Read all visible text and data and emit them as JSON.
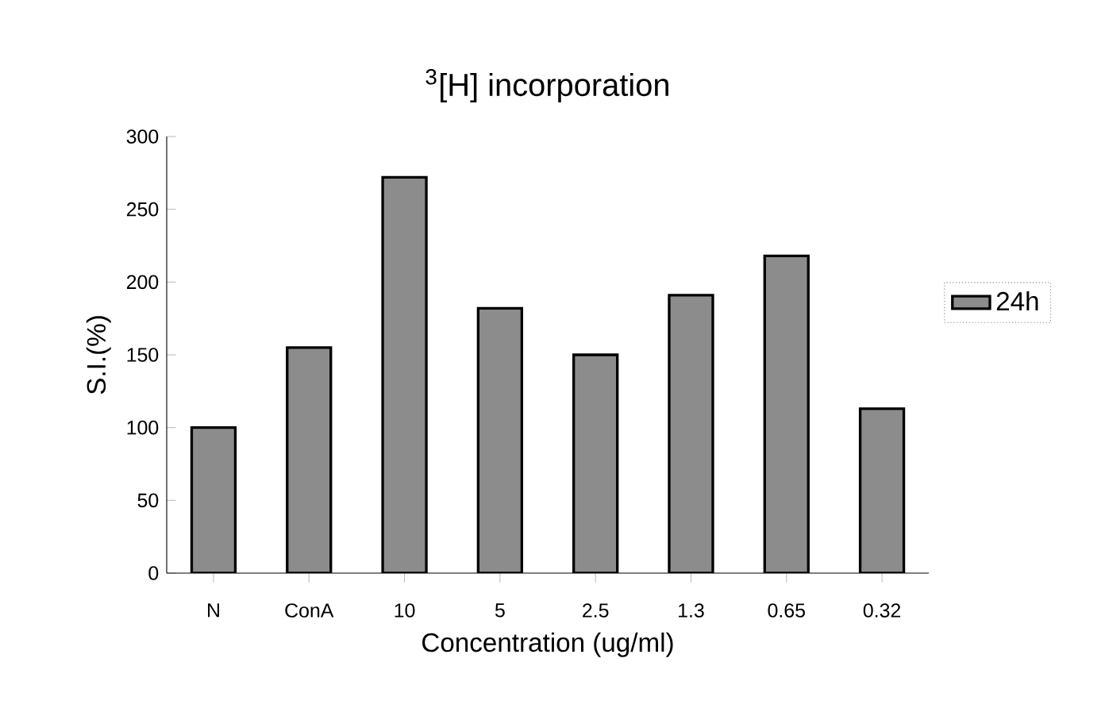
{
  "chart_data": {
    "type": "bar",
    "title": "$^{3}$[H] incorporation",
    "xlabel": "Concentration (ug/ml)",
    "ylabel": "S.I.(%)",
    "categories": [
      "N",
      "ConA",
      "10",
      "5",
      "2.5",
      "1.3",
      "0.65",
      "0.32"
    ],
    "series": [
      {
        "name": "24h",
        "color": "#8c8c8c",
        "values": [
          100,
          155,
          272,
          182,
          150,
          191,
          218,
          113
        ]
      }
    ],
    "ylim": [
      0,
      300
    ],
    "yticks": [
      0,
      50,
      100,
      150,
      200,
      250,
      300
    ],
    "legend": "right"
  }
}
